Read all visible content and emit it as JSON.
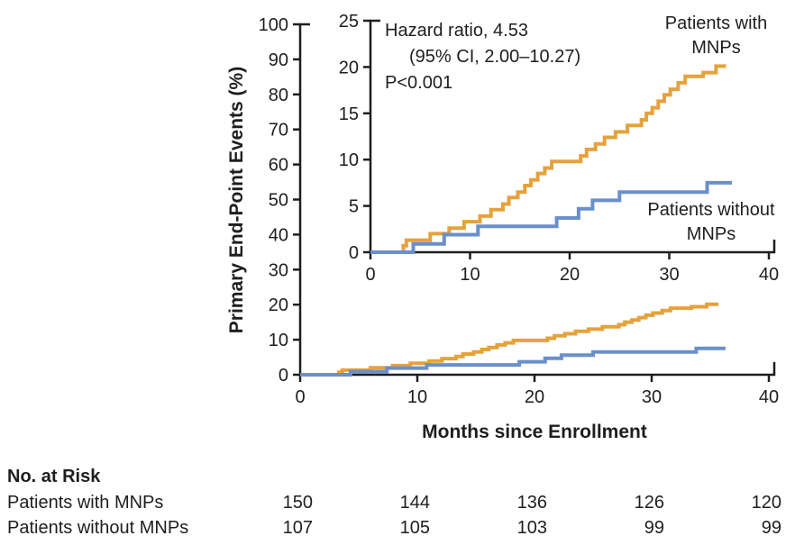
{
  "chart_data": {
    "type": "line",
    "subtype": "kaplan-meier-step",
    "title": "",
    "xlabel": "Months since Enrollment",
    "ylabel": "Primary End-Point Events (%)",
    "legend_position": "annotated-on-curves",
    "grid": false,
    "annotation": {
      "line1": "Hazard ratio, 4.53",
      "line2": "(95% CI, 2.00–10.27)",
      "line3": "P<0.001"
    },
    "colors": {
      "with_mnps": "#E5A23C",
      "without_mnps": "#6A90CB",
      "axis": "#1e1e1e"
    },
    "series": [
      {
        "name": "Patients with MNPs",
        "label_lines": [
          "Patients with",
          "MNPs"
        ],
        "color_key": "with_mnps",
        "end_x": 35.7,
        "points": [
          [
            3.3,
            0.7
          ],
          [
            3.6,
            1.3
          ],
          [
            6.0,
            2.0
          ],
          [
            7.9,
            2.6
          ],
          [
            9.4,
            3.3
          ],
          [
            11.0,
            3.9
          ],
          [
            12.1,
            4.6
          ],
          [
            13.3,
            5.2
          ],
          [
            13.9,
            5.9
          ],
          [
            14.8,
            6.5
          ],
          [
            15.5,
            7.2
          ],
          [
            16.1,
            7.8
          ],
          [
            16.8,
            8.5
          ],
          [
            17.5,
            9.1
          ],
          [
            18.2,
            9.8
          ],
          [
            21.1,
            10.4
          ],
          [
            21.7,
            11.1
          ],
          [
            22.6,
            11.7
          ],
          [
            23.5,
            12.4
          ],
          [
            24.6,
            13.0
          ],
          [
            25.8,
            13.7
          ],
          [
            27.2,
            14.3
          ],
          [
            27.7,
            15.0
          ],
          [
            28.3,
            15.6
          ],
          [
            28.9,
            16.3
          ],
          [
            29.5,
            17.0
          ],
          [
            30.1,
            17.6
          ],
          [
            30.9,
            18.3
          ],
          [
            31.6,
            19.0
          ],
          [
            33.4,
            19.4
          ],
          [
            34.7,
            20.1
          ]
        ]
      },
      {
        "name": "Patients without MNPs",
        "label_lines": [
          "Patients without",
          "MNPs"
        ],
        "color_key": "without_mnps",
        "end_x": 36.3,
        "points": [
          [
            4.3,
            0.9
          ],
          [
            7.4,
            1.9
          ],
          [
            10.8,
            2.8
          ],
          [
            18.7,
            3.7
          ],
          [
            20.9,
            4.7
          ],
          [
            22.3,
            5.6
          ],
          [
            25.0,
            6.5
          ],
          [
            33.8,
            7.5
          ]
        ]
      }
    ],
    "views": [
      {
        "id": "main",
        "xlim": [
          0,
          40
        ],
        "ylim": [
          0,
          100
        ],
        "xticks": [
          0,
          10,
          20,
          30,
          40
        ],
        "yticks": [
          0,
          10,
          20,
          30,
          40,
          50,
          60,
          70,
          80,
          90,
          100
        ]
      },
      {
        "id": "inset",
        "xlim": [
          0,
          40
        ],
        "ylim": [
          0,
          25
        ],
        "xticks": [
          0,
          10,
          20,
          30,
          40
        ],
        "yticks": [
          0,
          5,
          10,
          15,
          20,
          25
        ]
      }
    ]
  },
  "risk_table": {
    "header": "No. at Risk",
    "rows": [
      {
        "label": "Patients with MNPs",
        "values": [
          "150",
          "144",
          "136",
          "126",
          "120"
        ]
      },
      {
        "label": "Patients without MNPs",
        "values": [
          "107",
          "105",
          "103",
          "99",
          "99"
        ]
      }
    ]
  }
}
